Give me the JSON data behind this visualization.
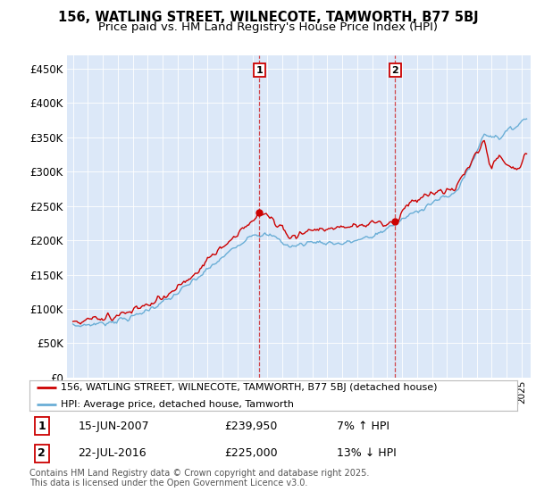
{
  "title": "156, WATLING STREET, WILNECOTE, TAMWORTH, B77 5BJ",
  "subtitle": "Price paid vs. HM Land Registry's House Price Index (HPI)",
  "ylim": [
    0,
    470000
  ],
  "yticks": [
    0,
    50000,
    100000,
    150000,
    200000,
    250000,
    300000,
    350000,
    400000,
    450000
  ],
  "ytick_labels": [
    "£0",
    "£50K",
    "£100K",
    "£150K",
    "£200K",
    "£250K",
    "£300K",
    "£350K",
    "£400K",
    "£450K"
  ],
  "plot_bg_color": "#dce8f8",
  "hpi_color": "#6aaed6",
  "price_color": "#cc0000",
  "sale1_date": "15-JUN-2007",
  "sale1_price": "£239,950",
  "sale1_pct": "7% ↑ HPI",
  "sale2_date": "22-JUL-2016",
  "sale2_price": "£225,000",
  "sale2_pct": "13% ↓ HPI",
  "legend_property": "156, WATLING STREET, WILNECOTE, TAMWORTH, B77 5BJ (detached house)",
  "legend_hpi": "HPI: Average price, detached house, Tamworth",
  "footer": "Contains HM Land Registry data © Crown copyright and database right 2025.\nThis data is licensed under the Open Government Licence v3.0."
}
